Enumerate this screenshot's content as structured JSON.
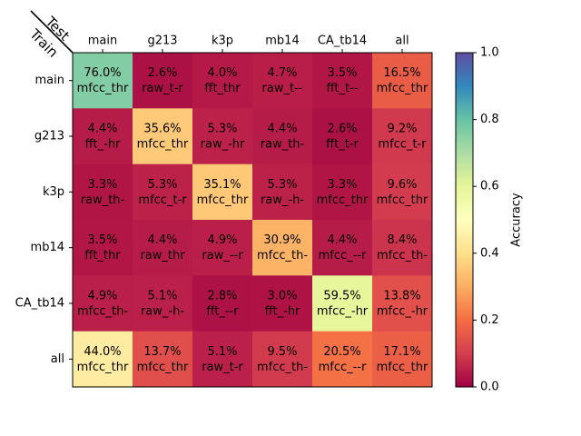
{
  "chart_data": {
    "type": "heatmap",
    "corner_labels": {
      "top": "Test",
      "bottom": "Train"
    },
    "columns": [
      "main",
      "g213",
      "k3p",
      "mb14",
      "CA_tb14",
      "all"
    ],
    "rows": [
      "main",
      "g213",
      "k3p",
      "mb14",
      "CA_tb14",
      "all"
    ],
    "values": [
      [
        0.76,
        0.026,
        0.04,
        0.047,
        0.035,
        0.165
      ],
      [
        0.044,
        0.356,
        0.053,
        0.044,
        0.026,
        0.092
      ],
      [
        0.033,
        0.053,
        0.351,
        0.053,
        0.033,
        0.096
      ],
      [
        0.035,
        0.044,
        0.049,
        0.309,
        0.044,
        0.084
      ],
      [
        0.049,
        0.051,
        0.028,
        0.03,
        0.595,
        0.138
      ],
      [
        0.44,
        0.137,
        0.051,
        0.095,
        0.205,
        0.171
      ]
    ],
    "value_labels": [
      [
        "76.0%",
        "2.6%",
        "4.0%",
        "4.7%",
        "3.5%",
        "16.5%"
      ],
      [
        "4.4%",
        "35.6%",
        "5.3%",
        "4.4%",
        "2.6%",
        "9.2%"
      ],
      [
        "3.3%",
        "5.3%",
        "35.1%",
        "5.3%",
        "3.3%",
        "9.6%"
      ],
      [
        "3.5%",
        "4.4%",
        "4.9%",
        "30.9%",
        "4.4%",
        "8.4%"
      ],
      [
        "4.9%",
        "5.1%",
        "2.8%",
        "3.0%",
        "59.5%",
        "13.8%"
      ],
      [
        "44.0%",
        "13.7%",
        "5.1%",
        "9.5%",
        "20.5%",
        "17.1%"
      ]
    ],
    "cell_methods": [
      [
        "mfcc_thr",
        "raw_t-r",
        "fft_thr",
        "raw_t--",
        "fft_t--",
        "mfcc_thr"
      ],
      [
        "fft_-hr",
        "mfcc_thr",
        "raw_-hr",
        "raw_th-",
        "fft_t-r",
        "mfcc_t-r"
      ],
      [
        "raw_th-",
        "mfcc_t-r",
        "mfcc_thr",
        "raw_-h-",
        "mfcc_thr",
        "mfcc_thr"
      ],
      [
        "fft_thr",
        "raw_thr",
        "raw_--r",
        "mfcc_th-",
        "mfcc_--r",
        "mfcc_th-"
      ],
      [
        "mfcc_th-",
        "raw_-h-",
        "fft_--r",
        "fft_-hr",
        "mfcc_-hr",
        "mfcc_-hr"
      ],
      [
        "mfcc_thr",
        "mfcc_thr",
        "raw_t-r",
        "mfcc_th-",
        "mfcc_--r",
        "mfcc_thr"
      ]
    ],
    "colorbar": {
      "label": "Accuracy",
      "range": [
        0.0,
        1.0
      ],
      "ticks": [
        0.0,
        0.2,
        0.4,
        0.6,
        0.8,
        1.0
      ],
      "tick_labels": [
        "0.0",
        "0.2",
        "0.4",
        "0.6",
        "0.8",
        "1.0"
      ],
      "colormap": "Spectral",
      "colormap_stops": [
        "#9e0142",
        "#d53e4f",
        "#f46d43",
        "#fdae61",
        "#fee08b",
        "#ffffbf",
        "#e6f598",
        "#abdda4",
        "#66c2a5",
        "#3288bd",
        "#5e4fa2"
      ]
    },
    "grid": false
  }
}
